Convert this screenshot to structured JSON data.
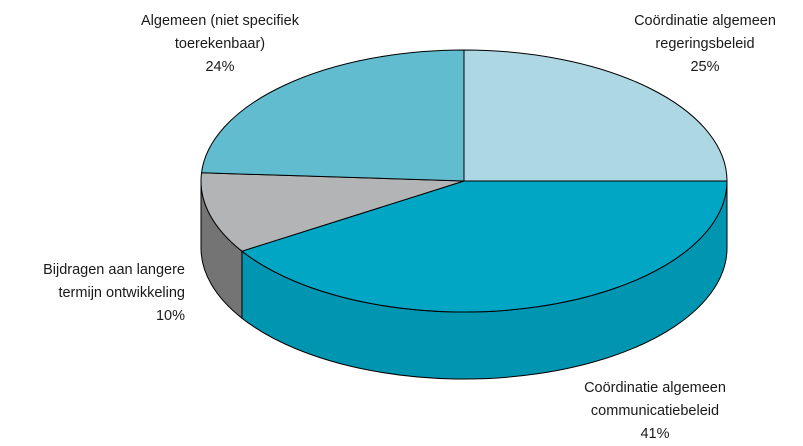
{
  "chart_data": {
    "type": "pie",
    "style": "3d",
    "slices": [
      {
        "line1": "Coördinatie algemeen",
        "line2": "regeringsbeleid",
        "pct_label": "25%",
        "value": 25,
        "color": "#acd7e3",
        "side_color": "#8fbccb"
      },
      {
        "line1": "Coördinatie algemeen",
        "line2": "communicatiebeleid",
        "pct_label": "41%",
        "value": 41,
        "color": "#00a6c4",
        "side_color": "#0096b2"
      },
      {
        "line1": "Bijdragen aan langere",
        "line2": "termijn ontwikkeling",
        "pct_label": "10%",
        "value": 10,
        "color": "#b3b4b6",
        "side_color": "#747474"
      },
      {
        "line1": "Algemeen (niet specifiek",
        "line2": "toerekenbaar)",
        "pct_label": "24%",
        "value": 24,
        "color": "#60bcce",
        "side_color": "#4aa4b6"
      }
    ]
  }
}
